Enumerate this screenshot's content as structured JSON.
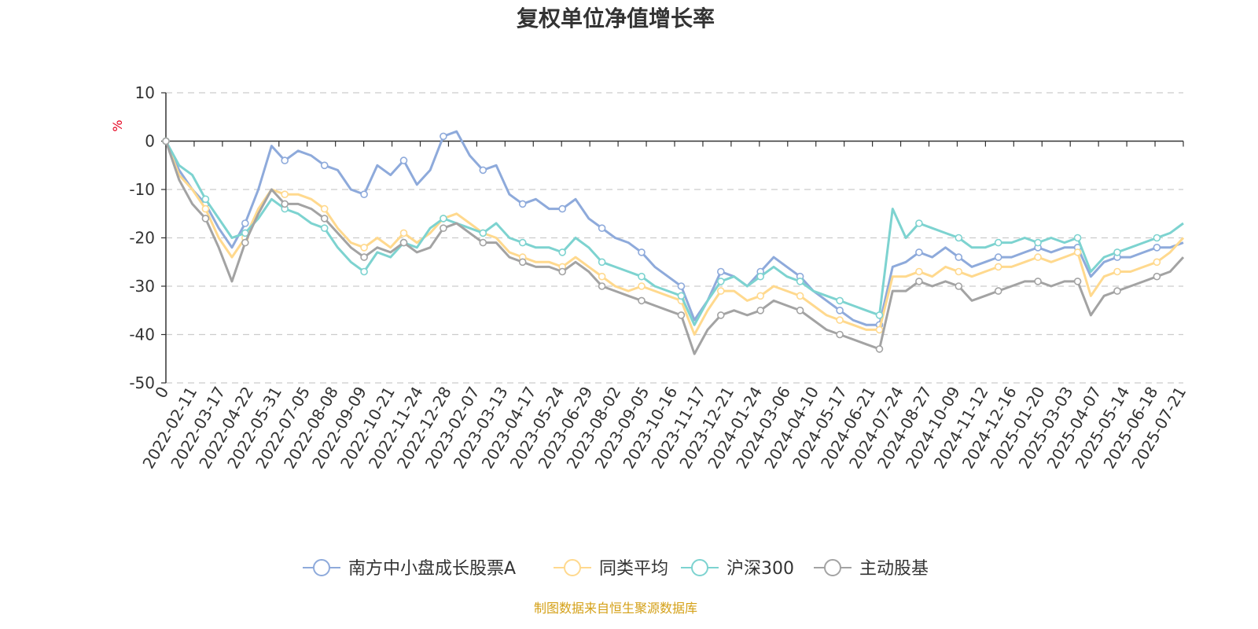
{
  "chart_data": {
    "type": "line",
    "title": "复权单位净值增长率",
    "ylabel": "%",
    "ylim": [
      -50,
      10
    ],
    "yticks": [
      10,
      0,
      -10,
      -20,
      -30,
      -40,
      -50
    ],
    "grid": true,
    "legend_position": "bottom",
    "x_first_label": "0",
    "x_tick_labels": [
      "0",
      "2022-02-11",
      "2022-03-17",
      "2022-04-22",
      "2022-05-31",
      "2022-07-05",
      "2022-08-08",
      "2022-09-09",
      "2022-10-21",
      "2022-11-24",
      "2022-12-28",
      "2023-02-07",
      "2023-03-13",
      "2023-04-17",
      "2023-05-24",
      "2023-06-29",
      "2023-08-02",
      "2023-09-05",
      "2023-10-16",
      "2023-11-17",
      "2023-12-21",
      "2024-01-24",
      "2024-03-06",
      "2024-04-10",
      "2024-05-17",
      "2024-06-21",
      "2024-07-24",
      "2024-08-27",
      "2024-10-09",
      "2024-11-12",
      "2024-12-16",
      "2025-01-20",
      "2025-03-03",
      "2025-04-07",
      "2025-05-14",
      "2025-06-18",
      "2025-07-21"
    ],
    "series": [
      {
        "name": "南方中小盘成长股票A",
        "color": "#8eaadb",
        "values": [
          0,
          -6,
          -10,
          -13,
          -18,
          -22,
          -17,
          -10,
          -1,
          -4,
          -2,
          -3,
          -5,
          -6,
          -10,
          -11,
          -5,
          -7,
          -4,
          -9,
          -6,
          1,
          2,
          -3,
          -6,
          -5,
          -11,
          -13,
          -12,
          -14,
          -14,
          -12,
          -16,
          -18,
          -20,
          -21,
          -23,
          -26,
          -28,
          -30,
          -37,
          -33,
          -27,
          -28,
          -30,
          -27,
          -24,
          -26,
          -28,
          -31,
          -33,
          -35,
          -37,
          -38,
          -38,
          -26,
          -25,
          -23,
          -24,
          -22,
          -24,
          -26,
          -25,
          -24,
          -24,
          -23,
          -22,
          -23,
          -22,
          -22,
          -28,
          -25,
          -24,
          -24,
          -23,
          -22,
          -22,
          -21
        ]
      },
      {
        "name": "同类平均",
        "color": "#ffd98e",
        "values": [
          0,
          -7,
          -10,
          -14,
          -20,
          -24,
          -20,
          -14,
          -10,
          -11,
          -11,
          -12,
          -14,
          -18,
          -21,
          -22,
          -20,
          -22,
          -19,
          -21,
          -19,
          -16,
          -15,
          -17,
          -19,
          -20,
          -23,
          -24,
          -25,
          -25,
          -26,
          -24,
          -26,
          -28,
          -30,
          -31,
          -30,
          -31,
          -32,
          -33,
          -40,
          -35,
          -31,
          -31,
          -33,
          -32,
          -30,
          -31,
          -32,
          -34,
          -36,
          -37,
          -38,
          -39,
          -39,
          -28,
          -28,
          -27,
          -28,
          -26,
          -27,
          -28,
          -27,
          -26,
          -26,
          -25,
          -24,
          -25,
          -24,
          -23,
          -32,
          -28,
          -27,
          -27,
          -26,
          -25,
          -23,
          -20
        ]
      },
      {
        "name": "沪深300",
        "color": "#7dd3d0",
        "values": [
          0,
          -5,
          -7,
          -12,
          -16,
          -20,
          -19,
          -16,
          -12,
          -14,
          -15,
          -17,
          -18,
          -22,
          -25,
          -27,
          -23,
          -24,
          -21,
          -22,
          -18,
          -16,
          -17,
          -18,
          -19,
          -17,
          -20,
          -21,
          -22,
          -22,
          -23,
          -20,
          -22,
          -25,
          -26,
          -27,
          -28,
          -30,
          -31,
          -32,
          -38,
          -33,
          -29,
          -28,
          -30,
          -28,
          -26,
          -28,
          -29,
          -31,
          -32,
          -33,
          -34,
          -35,
          -36,
          -14,
          -20,
          -17,
          -18,
          -19,
          -20,
          -22,
          -22,
          -21,
          -21,
          -20,
          -21,
          -20,
          -21,
          -20,
          -27,
          -24,
          -23,
          -22,
          -21,
          -20,
          -19,
          -17
        ]
      },
      {
        "name": "主动股基",
        "color": "#a3a3a3",
        "values": [
          0,
          -8,
          -13,
          -16,
          -22,
          -29,
          -21,
          -15,
          -10,
          -13,
          -13,
          -14,
          -16,
          -19,
          -22,
          -24,
          -22,
          -23,
          -21,
          -23,
          -22,
          -18,
          -17,
          -19,
          -21,
          -21,
          -24,
          -25,
          -26,
          -26,
          -27,
          -25,
          -27,
          -30,
          -31,
          -32,
          -33,
          -34,
          -35,
          -36,
          -44,
          -39,
          -36,
          -35,
          -36,
          -35,
          -33,
          -34,
          -35,
          -37,
          -39,
          -40,
          -41,
          -42,
          -43,
          -31,
          -31,
          -29,
          -30,
          -29,
          -30,
          -33,
          -32,
          -31,
          -30,
          -29,
          -29,
          -30,
          -29,
          -29,
          -36,
          -32,
          -31,
          -30,
          -29,
          -28,
          -27,
          -24
        ]
      }
    ]
  },
  "source_text": "制图数据来自恒生聚源数据库",
  "colors": {
    "title": "#333333",
    "axis": "#333333",
    "grid": "#cccccc",
    "unit": "#e6001e",
    "source": "#d4a017"
  }
}
